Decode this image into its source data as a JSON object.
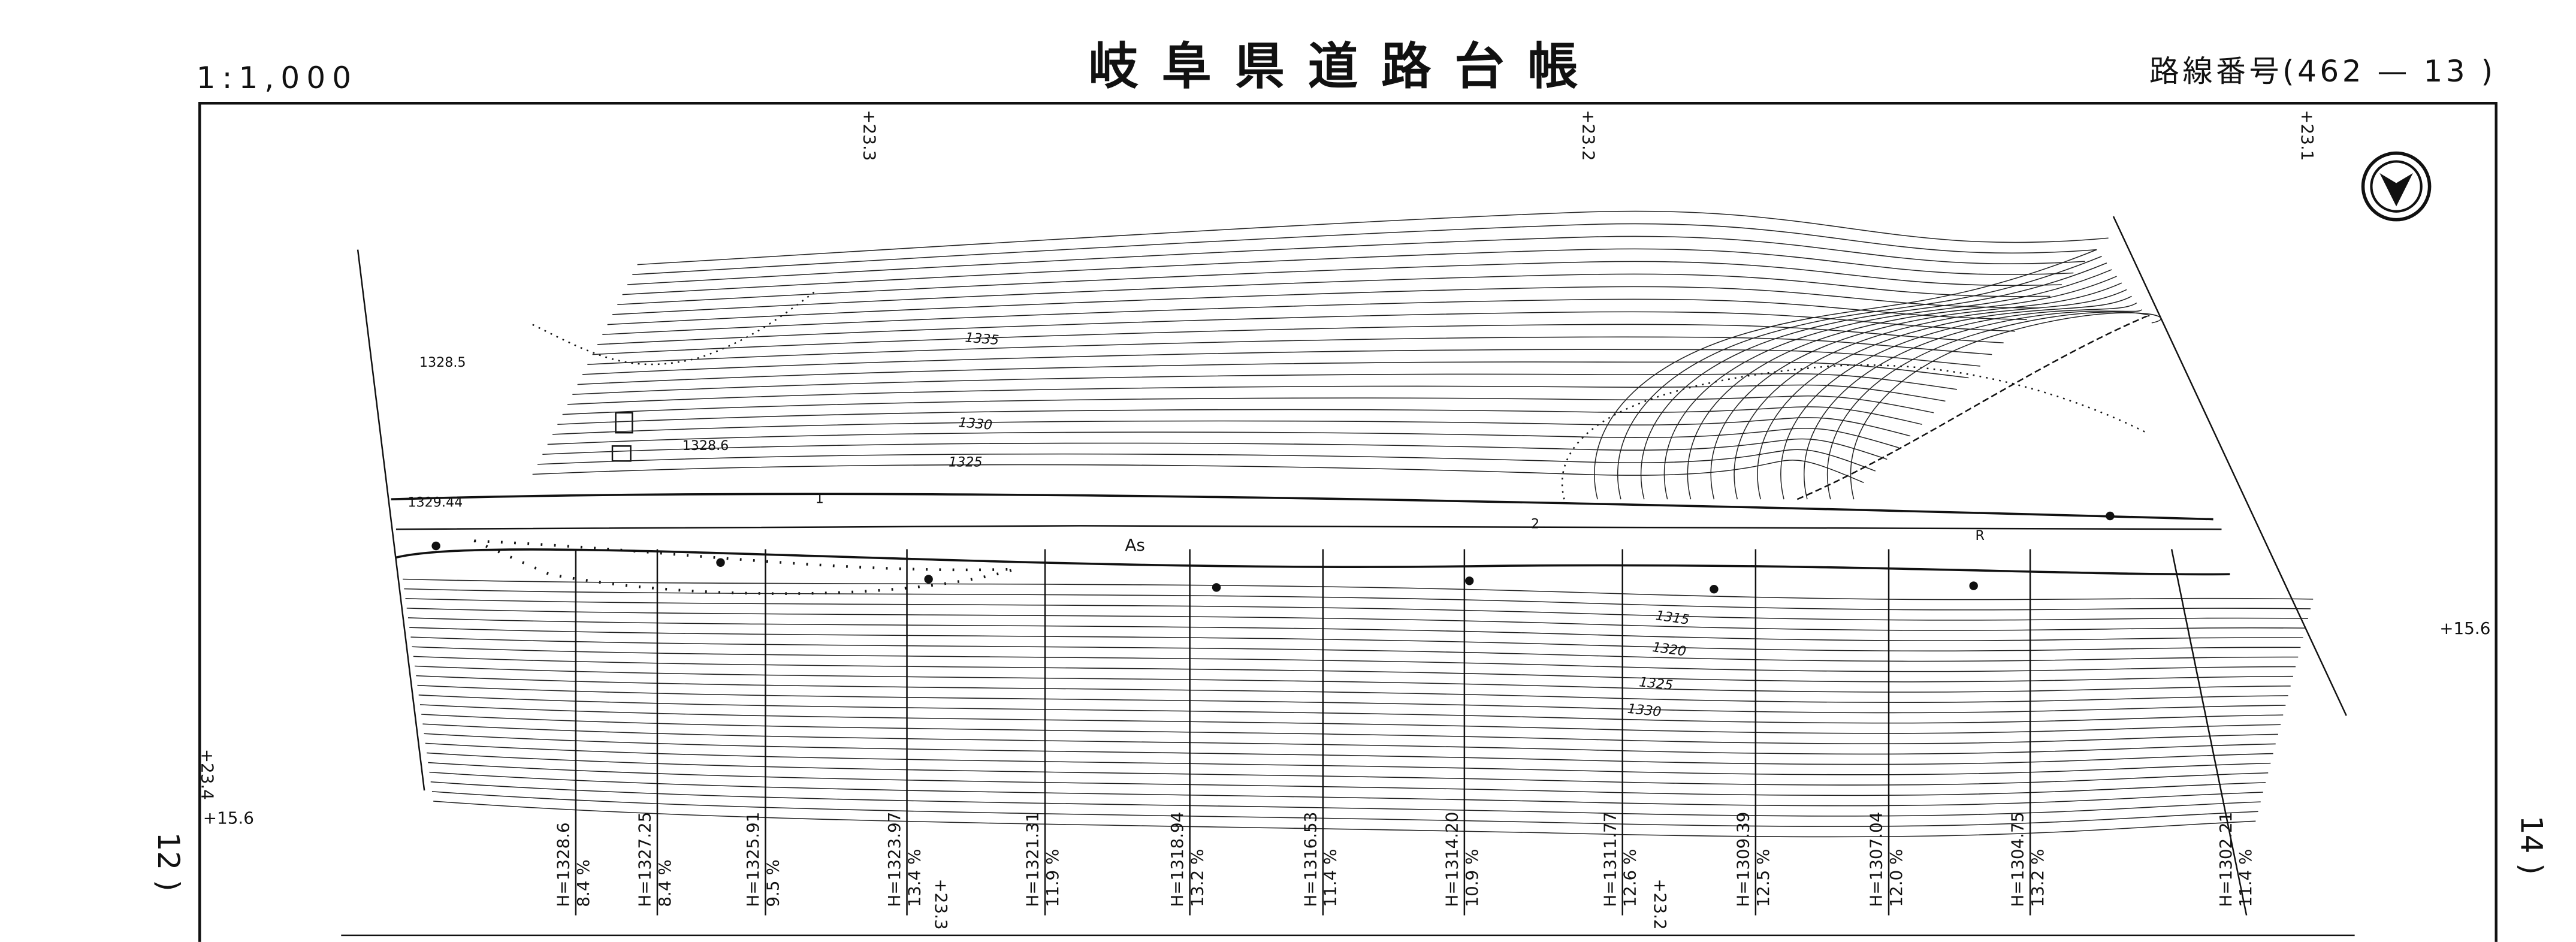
{
  "header": {
    "scale": "1:1,000",
    "title": "岐阜県道路台帳",
    "route": "路線番号(462 — 13 )"
  },
  "stations": [
    "+23.3",
    "+23.2",
    "+23.1",
    "+15.6",
    "+23.4",
    "+15.6",
    "+23.3",
    "+23.2"
  ],
  "adjacent_sheets": [
    "12 )",
    "14 )"
  ],
  "contour_labels": [
    "1335",
    "1330",
    "1325",
    "1315",
    "1320",
    "1325",
    "1330"
  ],
  "spot_labels": [
    "1328.5",
    "1328.6",
    "1329.44",
    "As",
    "1",
    "2",
    "R"
  ],
  "sections": [
    {
      "h": "H=1328.6",
      "grade": "8.4 %"
    },
    {
      "h": "H=1327.25",
      "grade": "8.4 %"
    },
    {
      "h": "H=1325.91",
      "grade": "9.5 %"
    },
    {
      "h": "H=1323.97",
      "grade": "13.4 %"
    },
    {
      "h": "H=1321.31",
      "grade": "11.9 %"
    },
    {
      "h": "H=1318.94",
      "grade": "13.2 %"
    },
    {
      "h": "H=1316.53",
      "grade": "11.4 %"
    },
    {
      "h": "H=1314.20",
      "grade": "10.9 %"
    },
    {
      "h": "H=1311.77",
      "grade": "12.6 %"
    },
    {
      "h": "H=1309.39",
      "grade": "12.5 %"
    },
    {
      "h": "H=1307.04",
      "grade": "12.0 %"
    },
    {
      "h": "H=1304.75",
      "grade": "13.2 %"
    },
    {
      "h": "H=1302.21",
      "grade": "11.4 %"
    }
  ]
}
